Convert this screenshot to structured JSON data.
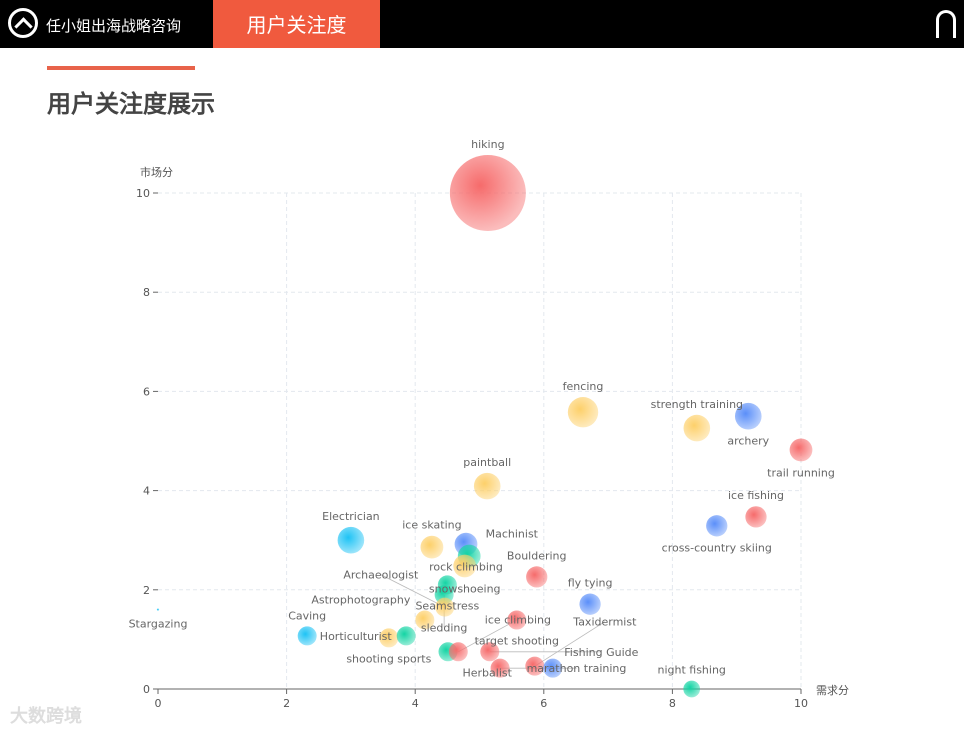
{
  "header": {
    "brand": "任小姐出海战略咨询",
    "active_tab": "用户关注度",
    "logo_icon": "mountain-circle-icon"
  },
  "page_title": "用户关注度展示",
  "watermark": "大数跨境",
  "colors": {
    "red": "#f66b6b",
    "yellow": "#fdd06a",
    "blue": "#5b8ff9",
    "cyan": "#1ec3f5",
    "teal": "#14d4a4",
    "accent": "#f05a3e"
  },
  "chart_data": {
    "type": "scatter",
    "xlabel": "需求分",
    "ylabel": "市场分",
    "xlim": [
      0,
      10
    ],
    "ylim": [
      0,
      10
    ],
    "xticks": [
      "0",
      "2",
      "4",
      "6",
      "8",
      "10"
    ],
    "yticks": [
      "0",
      "2",
      "4",
      "6",
      "8",
      "10"
    ],
    "grid": true,
    "points": [
      {
        "name": "hiking",
        "x": 5.13,
        "y": 10,
        "size": 10,
        "color": "red"
      },
      {
        "name": "fencing",
        "x": 6.61,
        "y": 5.58,
        "size": 4,
        "color": "yellow"
      },
      {
        "name": "strength training",
        "x": 8.38,
        "y": 5.26,
        "size": 3.5,
        "color": "yellow"
      },
      {
        "name": "archery",
        "x": 9.18,
        "y": 5.5,
        "size": 3.5,
        "color": "blue"
      },
      {
        "name": "trail running",
        "x": 10,
        "y": 4.82,
        "size": 3,
        "color": "red"
      },
      {
        "name": "paintball",
        "x": 5.12,
        "y": 4.09,
        "size": 3.5,
        "color": "yellow"
      },
      {
        "name": "ice fishing",
        "x": 9.3,
        "y": 3.47,
        "size": 2.8,
        "color": "red"
      },
      {
        "name": "cross-country skiing",
        "x": 8.69,
        "y": 3.29,
        "size": 2.8,
        "color": "blue"
      },
      {
        "name": "Electrician",
        "x": 3.0,
        "y": 3.0,
        "size": 3.5,
        "color": "cyan"
      },
      {
        "name": "ice skating",
        "x": 4.26,
        "y": 2.86,
        "size": 3,
        "color": "yellow"
      },
      {
        "name": "rock climbing",
        "x": 4.79,
        "y": 2.92,
        "size": 3,
        "color": "blue"
      },
      {
        "name": "Machinist",
        "x": 4.84,
        "y": 2.68,
        "size": 3,
        "color": "teal"
      },
      {
        "name": "snowshoeing",
        "x": 4.77,
        "y": 2.48,
        "size": 3,
        "color": "yellow"
      },
      {
        "name": "Seamstress",
        "x": 4.5,
        "y": 2.1,
        "size": 2.5,
        "color": "teal"
      },
      {
        "name": "sledding",
        "x": 4.45,
        "y": 1.9,
        "size": 2.5,
        "color": "teal"
      },
      {
        "name": "Bouldering",
        "x": 5.89,
        "y": 2.26,
        "size": 2.8,
        "color": "red"
      },
      {
        "name": "fly tying",
        "x": 6.72,
        "y": 1.71,
        "size": 2.8,
        "color": "blue"
      },
      {
        "name": "Archaeologist",
        "x": 4.46,
        "y": 1.65,
        "size": 2.5,
        "color": "yellow"
      },
      {
        "name": "target shooting",
        "x": 5.58,
        "y": 1.39,
        "size": 2.5,
        "color": "red"
      },
      {
        "name": "Stargazing",
        "x": 0,
        "y": 1.6,
        "size": 0.3,
        "color": "cyan"
      },
      {
        "name": "Caving",
        "x": 2.32,
        "y": 1.07,
        "size": 2.5,
        "color": "cyan"
      },
      {
        "name": "Astrophotography",
        "x": 4.15,
        "y": 1.39,
        "size": 2.5,
        "color": "yellow"
      },
      {
        "name": "shooting sports",
        "x": 3.59,
        "y": 1.03,
        "size": 2.5,
        "color": "yellow"
      },
      {
        "name": "Horticulturist",
        "x": 3.86,
        "y": 1.07,
        "size": 2.5,
        "color": "teal"
      },
      {
        "name": "Herbalist",
        "x": 4.51,
        "y": 0.75,
        "size": 2.5,
        "color": "teal"
      },
      {
        "name": "ice climbing",
        "x": 4.67,
        "y": 0.75,
        "size": 2.5,
        "color": "red"
      },
      {
        "name": "Fishing Guide",
        "x": 5.16,
        "y": 0.75,
        "size": 2.5,
        "color": "red"
      },
      {
        "name": "marathon training",
        "x": 5.32,
        "y": 0.42,
        "size": 2.5,
        "color": "red"
      },
      {
        "name": "Taxidermist",
        "x": 5.86,
        "y": 0.46,
        "size": 2.5,
        "color": "red"
      },
      {
        "name": "",
        "x": 6.14,
        "y": 0.42,
        "size": 2.5,
        "color": "blue"
      },
      {
        "name": "night fishing",
        "x": 8.3,
        "y": 0.0,
        "size": 2.2,
        "color": "teal"
      }
    ]
  }
}
